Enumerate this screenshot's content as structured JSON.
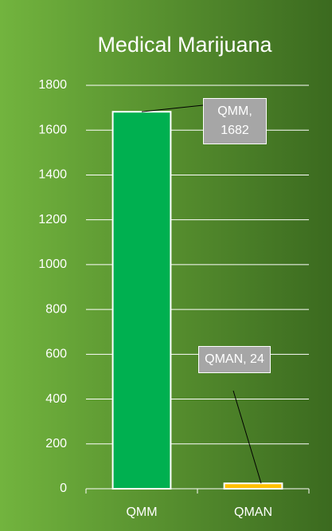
{
  "chart_data": {
    "type": "bar",
    "title": "Medical Marijuana",
    "categories": [
      "QMM",
      "QMAN"
    ],
    "values": [
      1682,
      24
    ],
    "value_labels": [
      "QMM, 1682",
      "QMAN, 24"
    ],
    "colors": [
      "#00b050",
      "#ffc000"
    ],
    "ylim": [
      0,
      1800
    ],
    "yticks": [
      0,
      200,
      400,
      600,
      800,
      1000,
      1200,
      1400,
      1600,
      1800
    ],
    "grid": true
  }
}
